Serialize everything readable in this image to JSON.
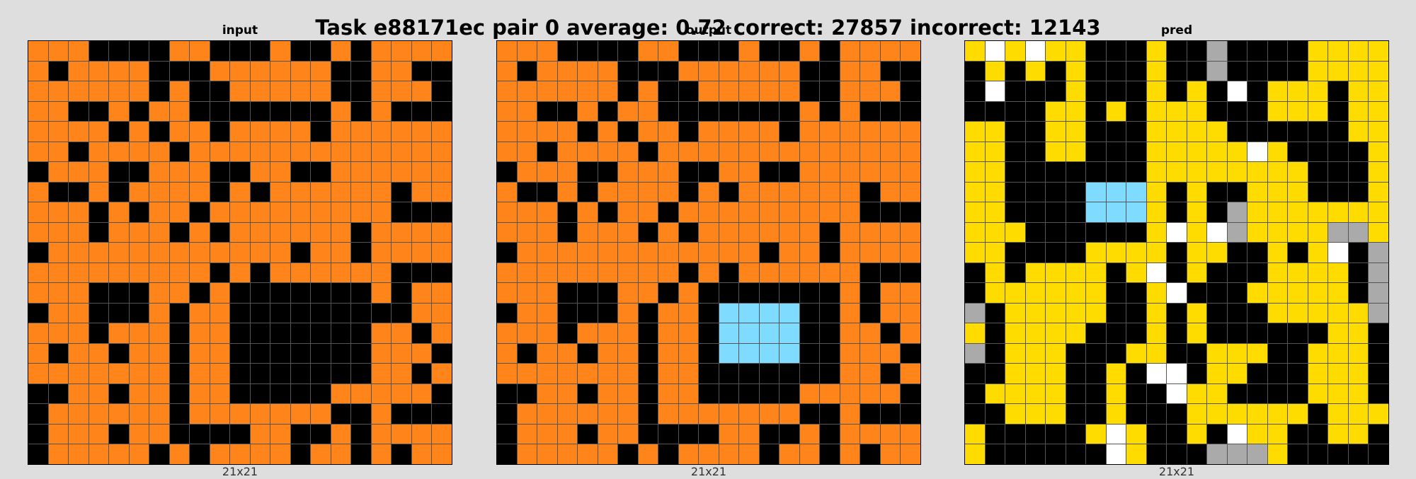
{
  "title": "Task e88171ec pair 0 average: 0.72 correct: 27857 incorrect: 12143",
  "colors": {
    "0": "#000000",
    "4": "#ffdc00",
    "5": "#aaaaaa",
    "7": "#ff851b",
    "8": "#7fdbff",
    "9": "#ffffff"
  },
  "panels": [
    {
      "title": "input",
      "caption": "21x21",
      "rows": [
        "777000077000700707777",
        "707777000777777007700",
        "777777070077777007770",
        "770070770000000707000",
        "777707077077770777777",
        "770777707777777777777",
        "077700777007700777777",
        "700707777070777777077",
        "777070770777777777000",
        "777077707077777707777",
        "077777777777707707777",
        "777777777070777777000",
        "777000770700000007077",
        "077000707700000000077",
        "777077707700000007707",
        "707707707700000007770",
        "777777707700000007707",
        "007707707700000777770",
        "077777707777777007000",
        "077707700007700707777",
        "077777070777707707077"
      ]
    },
    {
      "title": "output",
      "caption": "21x21",
      "rows": [
        "777000077000700707777",
        "707777000777777007700",
        "777777070077777007770",
        "770070770000000707000",
        "777707077077770777777",
        "770777707777777777777",
        "077700777007700777777",
        "700707777070777777077",
        "777070770777777777000",
        "777077707077777707777",
        "077777777777707707777",
        "777777777070777777000",
        "777000770700000007077",
        "077000707708888007077",
        "777077707708888007707",
        "707707707708888007770",
        "777777707700000007707",
        "007707707700000777770",
        "077777707777777007000",
        "077707700007700707777",
        "077777070777707707077"
      ]
    },
    {
      "title": "pred",
      "caption": "21x21",
      "rows": [
        "494944000400500004444",
        "040404000400500004444",
        "090004000404090444044",
        "000044040444000444044",
        "440044000444400000044",
        "440044000444449400004",
        "440000000444444440004",
        "440000888404004440004",
        "440000888404054444444",
        "444000000494954444554",
        "440000444404400404905",
        "040444404904000444405",
        "044444400490004444405",
        "504444400404000444445",
        "404444000404000000440",
        "504440004400444004440",
        "004440040990440004440",
        "044440040094400004440",
        "004440040004444440444",
        "400000494004094400440",
        "400000094000555400000"
      ]
    }
  ]
}
